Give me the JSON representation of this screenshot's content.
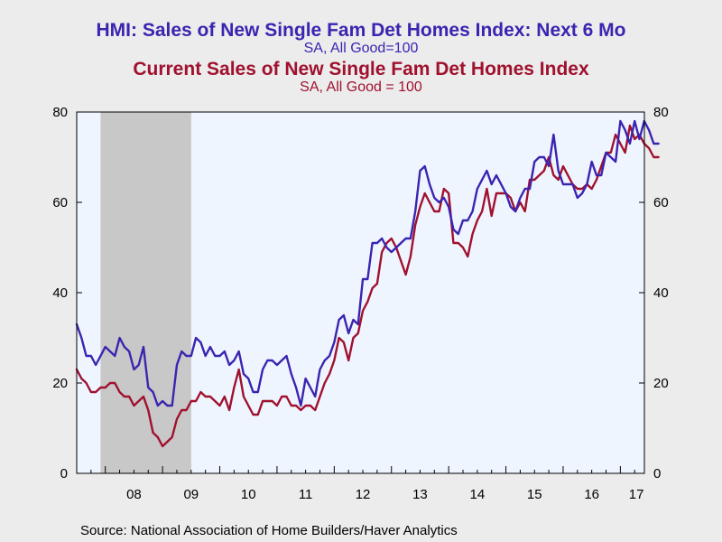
{
  "chart_data": {
    "type": "line",
    "titles": [
      {
        "text": "HMI: Sales of New Single Fam Det Homes Index: Next 6 Mo",
        "color": "#3b24b0"
      },
      {
        "text": "SA, All Good=100",
        "color": "#3b24b0"
      },
      {
        "text": "Current Sales of New Single Fam Det Homes Index",
        "color": "#a0112e"
      },
      {
        "text": "SA, All Good = 100",
        "color": "#a0112e"
      }
    ],
    "source": "Source:  National Association of Home Builders/Haver Analytics",
    "x_start_year": 2007.5,
    "x_end_year": 2017.42,
    "x_tick_labels": [
      "08",
      "09",
      "10",
      "11",
      "12",
      "13",
      "14",
      "15",
      "16",
      "17"
    ],
    "x_tick_label_years": [
      2008,
      2009,
      2010,
      2011,
      2012,
      2013,
      2014,
      2015,
      2016,
      2017
    ],
    "ylim": [
      0,
      80
    ],
    "y_ticks": [
      0,
      20,
      40,
      60,
      80
    ],
    "recession_shade": [
      2007.917,
      2009.5
    ],
    "plot_background": "#eef5ff",
    "recession_color": "#c8c8c8",
    "series": [
      {
        "name": "HMI: Sales of New Single Fam Det Homes Index: Next 6 Mo",
        "color": "#3b24b0",
        "start": 2007.5,
        "values": [
          33,
          30,
          26,
          26,
          24,
          26,
          28,
          27,
          26,
          30,
          28,
          27,
          23,
          24,
          28,
          19,
          18,
          15,
          16,
          15,
          15,
          24,
          27,
          26,
          26,
          30,
          29,
          26,
          28,
          26,
          26,
          27,
          24,
          25,
          27,
          22,
          21,
          18,
          18,
          23,
          25,
          25,
          24,
          25,
          26,
          22,
          19,
          15,
          21,
          19,
          17,
          23,
          25,
          26,
          29,
          34,
          35,
          31,
          34,
          33,
          43,
          43,
          51,
          51,
          52,
          50,
          49,
          50,
          51,
          52,
          52,
          58,
          67,
          68,
          64,
          61,
          60,
          61,
          59,
          54,
          53,
          56,
          56,
          58,
          63,
          65,
          67,
          64,
          66,
          64,
          62,
          59,
          58,
          61,
          63,
          63,
          69,
          70,
          70,
          68,
          75,
          67,
          64,
          64,
          64,
          61,
          62,
          64,
          69,
          66,
          66,
          71,
          70,
          69,
          78,
          76,
          73,
          78,
          74,
          78,
          76,
          73,
          73
        ]
      },
      {
        "name": "Current Sales of New Single Fam Det Homes Index",
        "color": "#a0112e",
        "start": 2007.5,
        "values": [
          23,
          21,
          20,
          18,
          18,
          19,
          19,
          20,
          20,
          18,
          17,
          17,
          15,
          16,
          17,
          14,
          9,
          8,
          6,
          7,
          8,
          12,
          14,
          14,
          16,
          16,
          18,
          17,
          17,
          16,
          15,
          17,
          14,
          19,
          23,
          17,
          15,
          13,
          13,
          16,
          16,
          16,
          15,
          17,
          17,
          15,
          15,
          14,
          15,
          15,
          14,
          17,
          20,
          22,
          25,
          30,
          29,
          25,
          30,
          31,
          36,
          38,
          41,
          42,
          49,
          51,
          52,
          50,
          47,
          44,
          48,
          55,
          59,
          62,
          60,
          58,
          58,
          63,
          62,
          51,
          51,
          50,
          48,
          53,
          56,
          58,
          63,
          57,
          62,
          62,
          62,
          61,
          58,
          60,
          58,
          65,
          65,
          66,
          67,
          70,
          66,
          65,
          68,
          66,
          64,
          63,
          63,
          64,
          63,
          65,
          68,
          71,
          71,
          75,
          73,
          71,
          77,
          74,
          75,
          73,
          72,
          70,
          70
        ]
      }
    ]
  }
}
